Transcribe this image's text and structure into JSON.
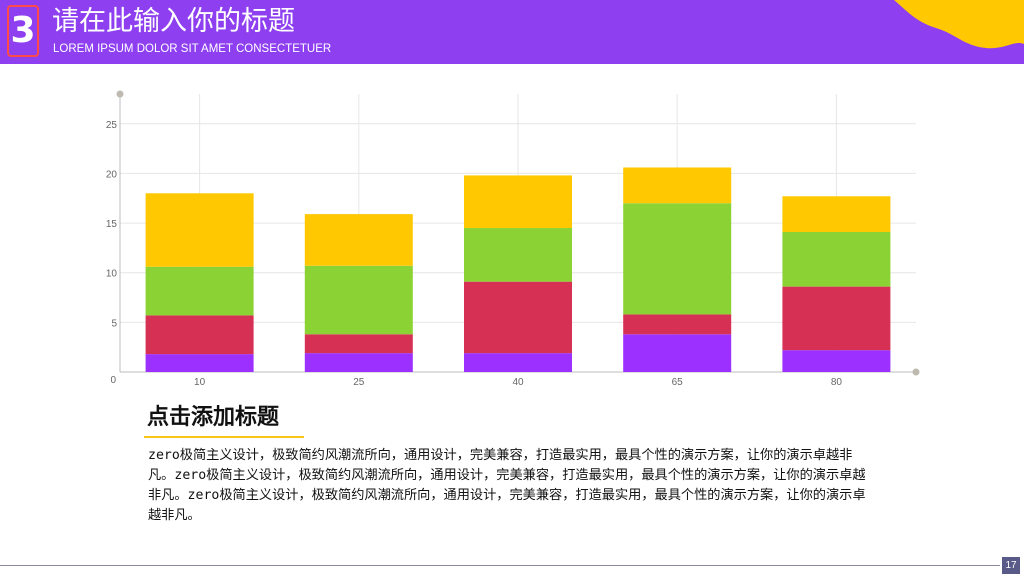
{
  "header": {
    "number": "3",
    "title": "请在此输入你的标题",
    "subtitle": "LOREM IPSUM DOLOR SIT AMET CONSECTETUER"
  },
  "chart_data": {
    "type": "bar",
    "stacked": true,
    "categories": [
      "10",
      "25",
      "40",
      "65",
      "80"
    ],
    "series": [
      {
        "color": "#9b30ff",
        "values": [
          1.8,
          1.9,
          1.9,
          3.8,
          2.2
        ]
      },
      {
        "color": "#d63155",
        "values": [
          3.9,
          1.9,
          7.2,
          2.0,
          6.4
        ]
      },
      {
        "color": "#8bd334",
        "values": [
          4.9,
          6.9,
          5.4,
          11.2,
          5.5
        ]
      },
      {
        "color": "#ffc800",
        "values": [
          7.4,
          5.2,
          5.3,
          3.6,
          3.6
        ]
      }
    ],
    "ylim": [
      0,
      28
    ],
    "yticks": [
      0,
      5,
      10,
      15,
      20,
      25
    ],
    "grid": true,
    "legend": "none"
  },
  "section": {
    "title": "点击添加标题",
    "body": "zero极简主义设计，极致简约风潮流所向，通用设计，完美兼容，打造最实用，最具个性的演示方案，让你的演示卓越非凡。zero极简主义设计，极致简约风潮流所向，通用设计，完美兼容，打造最实用，最具个性的演示方案，让你的演示卓越非凡。zero极简主义设计，极致简约风潮流所向，通用设计，完美兼容，打造最实用，最具个性的演示方案，让你的演示卓越非凡。"
  },
  "page_number": "17",
  "colors": {
    "header_bg": "#8e3ff0",
    "accent_yellow": "#ffc800",
    "underline": "#f5c518"
  }
}
